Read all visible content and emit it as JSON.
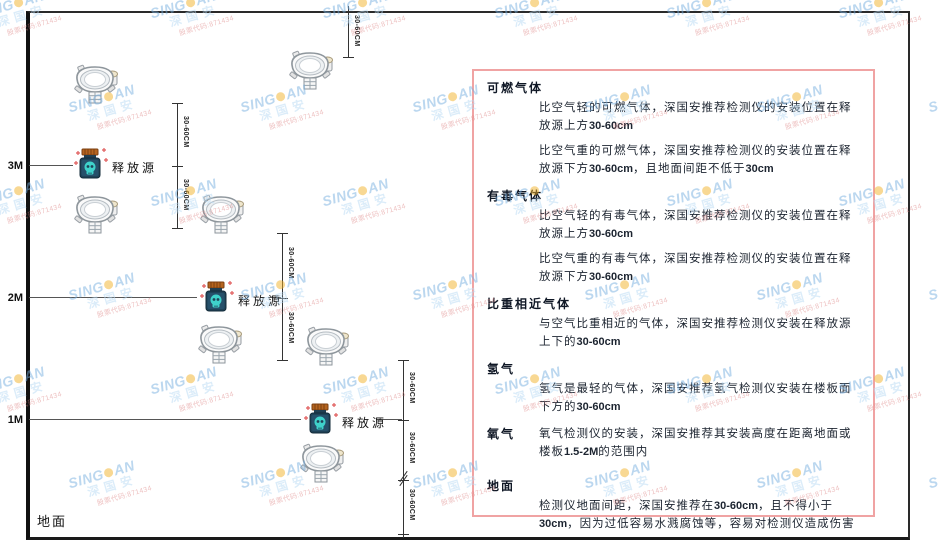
{
  "watermark": {
    "brand_prefix": "SING",
    "brand_suffix": "AN",
    "company": "深国安",
    "subtext": "股票代码:871434",
    "dot_color": "#f3b229"
  },
  "diagram": {
    "axis_3m": "3M",
    "axis_2m": "2M",
    "axis_1m": "1M",
    "ground_label": "地面",
    "source_label": "释放源",
    "dim_label": "30-60CM"
  },
  "panel": {
    "border_color": "#f0a3a3",
    "sections": [
      {
        "heading": "可燃气体",
        "paragraphs": [
          "比空气轻的可燃气体，深国安推荐检测仪的安装位置在释放源上方30-60cm",
          "比空气重的可燃气体，深国安推荐检测仪的安装位置在释放源下方30-60cm，且地面间距不低于30cm"
        ]
      },
      {
        "heading": "有毒气体",
        "paragraphs": [
          "比空气轻的有毒气体，深国安推荐检测仪的安装位置在释放源上方30-60cm",
          "比空气重的有毒气体，深国安推荐检测仪的安装位置在释放源下方30-60cm"
        ]
      },
      {
        "heading": "比重相近气体",
        "paragraphs": [
          "与空气比重相近的气体，深国安推荐检测仪安装在释放源上下的30-60cm"
        ]
      },
      {
        "heading": "氢气",
        "paragraphs": [
          "氢气是最轻的气体，深国安推荐氢气检测仪安装在楼板面下方的30-60cm"
        ]
      },
      {
        "heading": "氧气",
        "paragraphs": [
          "氧气检测仪的安装，深国安推荐其安装高度在距离地面或楼板1.5-2M的范围内"
        ]
      },
      {
        "heading": "地面",
        "paragraphs": [
          "检测仪地面间距，深国安推荐在30-60cm，且不得小于30cm，因为过低容易水溅腐蚀等，容易对检测仪造成伤害"
        ]
      }
    ]
  }
}
